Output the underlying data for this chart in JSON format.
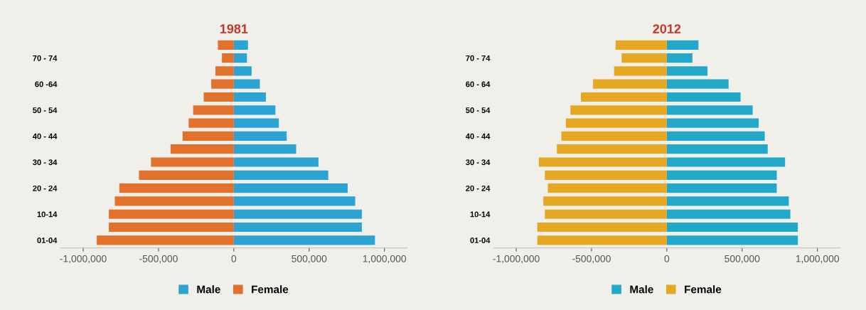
{
  "chart_data": [
    {
      "type": "bar",
      "orientation": "horizontal",
      "stacked": true,
      "title": "1981",
      "categories": [
        null,
        "70 - 74",
        null,
        "60 -64",
        null,
        "50 - 54",
        null,
        "40 - 44",
        null,
        "30 - 34",
        null,
        "20 - 24",
        null,
        "10-14",
        null,
        "01-04"
      ],
      "series": [
        {
          "name": "Male",
          "color": "#2ba3d3",
          "values": [
            94000,
            87000,
            118000,
            173000,
            213000,
            276000,
            299000,
            351000,
            414000,
            562000,
            627000,
            756000,
            806000,
            850000,
            850000,
            937000
          ]
        },
        {
          "name": "Female",
          "color": "#e2712c",
          "values": [
            -106000,
            -79000,
            -122000,
            -150000,
            -200000,
            -270000,
            -300000,
            -340000,
            -420000,
            -550000,
            -630000,
            -760000,
            -790000,
            -830000,
            -830000,
            -910000
          ]
        }
      ],
      "xlim": [
        -1150000,
        1150000
      ],
      "xticks": [
        {
          "value": -1000000,
          "label": "-1,000,000"
        },
        {
          "value": -500000,
          "label": "-500,000"
        },
        0,
        {
          "value": 500000,
          "label": "500,000"
        },
        {
          "value": 1000000,
          "label": "1,000,000"
        }
      ],
      "legend": "bottom",
      "grid": false
    },
    {
      "type": "bar",
      "orientation": "horizontal",
      "stacked": true,
      "title": "2012",
      "categories": [
        null,
        "70 - 74",
        null,
        "60 - 64",
        null,
        "50 - 54",
        null,
        "40 - 44",
        null,
        "30 - 34",
        null,
        "20 - 24",
        null,
        "10-14",
        null,
        "01-04"
      ],
      "series": [
        {
          "name": "Male",
          "color": "#22a9c9",
          "values": [
            210000,
            170000,
            270000,
            410000,
            490000,
            570000,
            610000,
            650000,
            670000,
            785000,
            730000,
            730000,
            810000,
            820000,
            870000,
            870000
          ]
        },
        {
          "name": "Female",
          "color": "#e6a823",
          "values": [
            -340000,
            -300000,
            -350000,
            -490000,
            -570000,
            -640000,
            -670000,
            -700000,
            -730000,
            -850000,
            -810000,
            -790000,
            -820000,
            -810000,
            -860000,
            -860000
          ]
        }
      ],
      "xlim": [
        -1150000,
        1150000
      ],
      "xticks": [
        {
          "value": -1000000,
          "label": "-1,000,000"
        },
        {
          "value": -500000,
          "label": "-500,000"
        },
        0,
        {
          "value": 500000,
          "label": "500,000"
        },
        {
          "value": 1000000,
          "label": "1,000,000"
        }
      ],
      "legend": "bottom",
      "grid": false
    }
  ]
}
